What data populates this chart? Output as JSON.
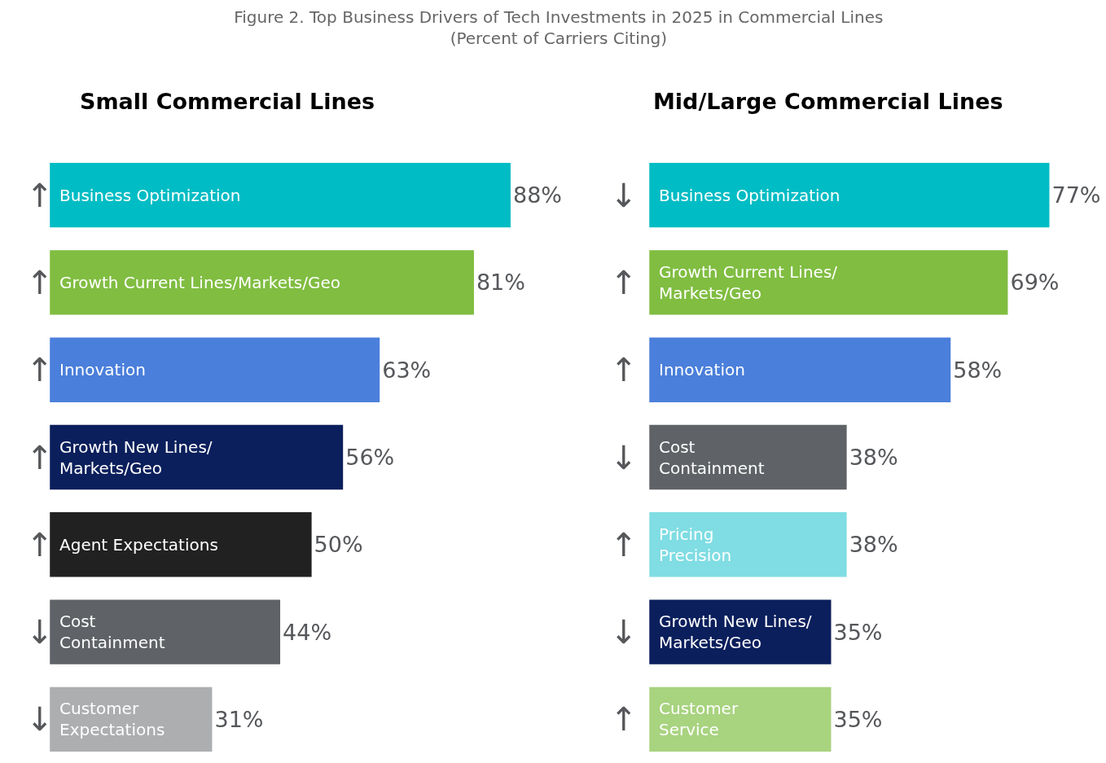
{
  "chart_data": [
    {
      "type": "bar",
      "orientation": "horizontal",
      "title": "Figure 2. Top Business Drivers of Tech Investments in 2025 in Commercial Lines\n(Percent of Carriers Citing)",
      "subtitle": "Small Commercial Lines",
      "categories": [
        "Business Optimization",
        "Growth Current Lines/Markets/Geo",
        "Innovation",
        "Growth New Lines/\nMarkets/Geo",
        "Agent Expectations",
        "Cost\nContainment",
        "Customer\nExpectations"
      ],
      "values": [
        88,
        81,
        63,
        56,
        50,
        44,
        31
      ],
      "value_labels": [
        "88%",
        "81%",
        "63%",
        "56%",
        "50%",
        "44%",
        "31%"
      ],
      "colors": [
        "#00bcc4",
        "#80bd41",
        "#4a7fdb",
        "#0b1f5c",
        "#212121",
        "#5f6266",
        "#adaeb0"
      ],
      "annotations": [
        "↑",
        "↑",
        "↑",
        "↑",
        "↑",
        "↓",
        "↓"
      ]
    },
    {
      "type": "bar",
      "orientation": "horizontal",
      "subtitle": "Mid/Large Commercial Lines",
      "categories": [
        "Business Optimization",
        "Growth Current Lines/\nMarkets/Geo",
        "Innovation",
        "Cost\nContainment",
        "Pricing\nPrecision",
        "Growth New Lines/\nMarkets/Geo",
        "Customer\nService"
      ],
      "values": [
        77,
        69,
        58,
        38,
        38,
        35,
        35
      ],
      "value_labels": [
        "77%",
        "69%",
        "58%",
        "38%",
        "38%",
        "35%",
        "35%"
      ],
      "colors": [
        "#00bcc4",
        "#80bd41",
        "#4a7fdb",
        "#5f6266",
        "#7fdde3",
        "#0b1f5c",
        "#a8d37f"
      ],
      "annotations": [
        "↓",
        "↑",
        "↑",
        "↓",
        "↑",
        "↓",
        "↑"
      ]
    }
  ]
}
